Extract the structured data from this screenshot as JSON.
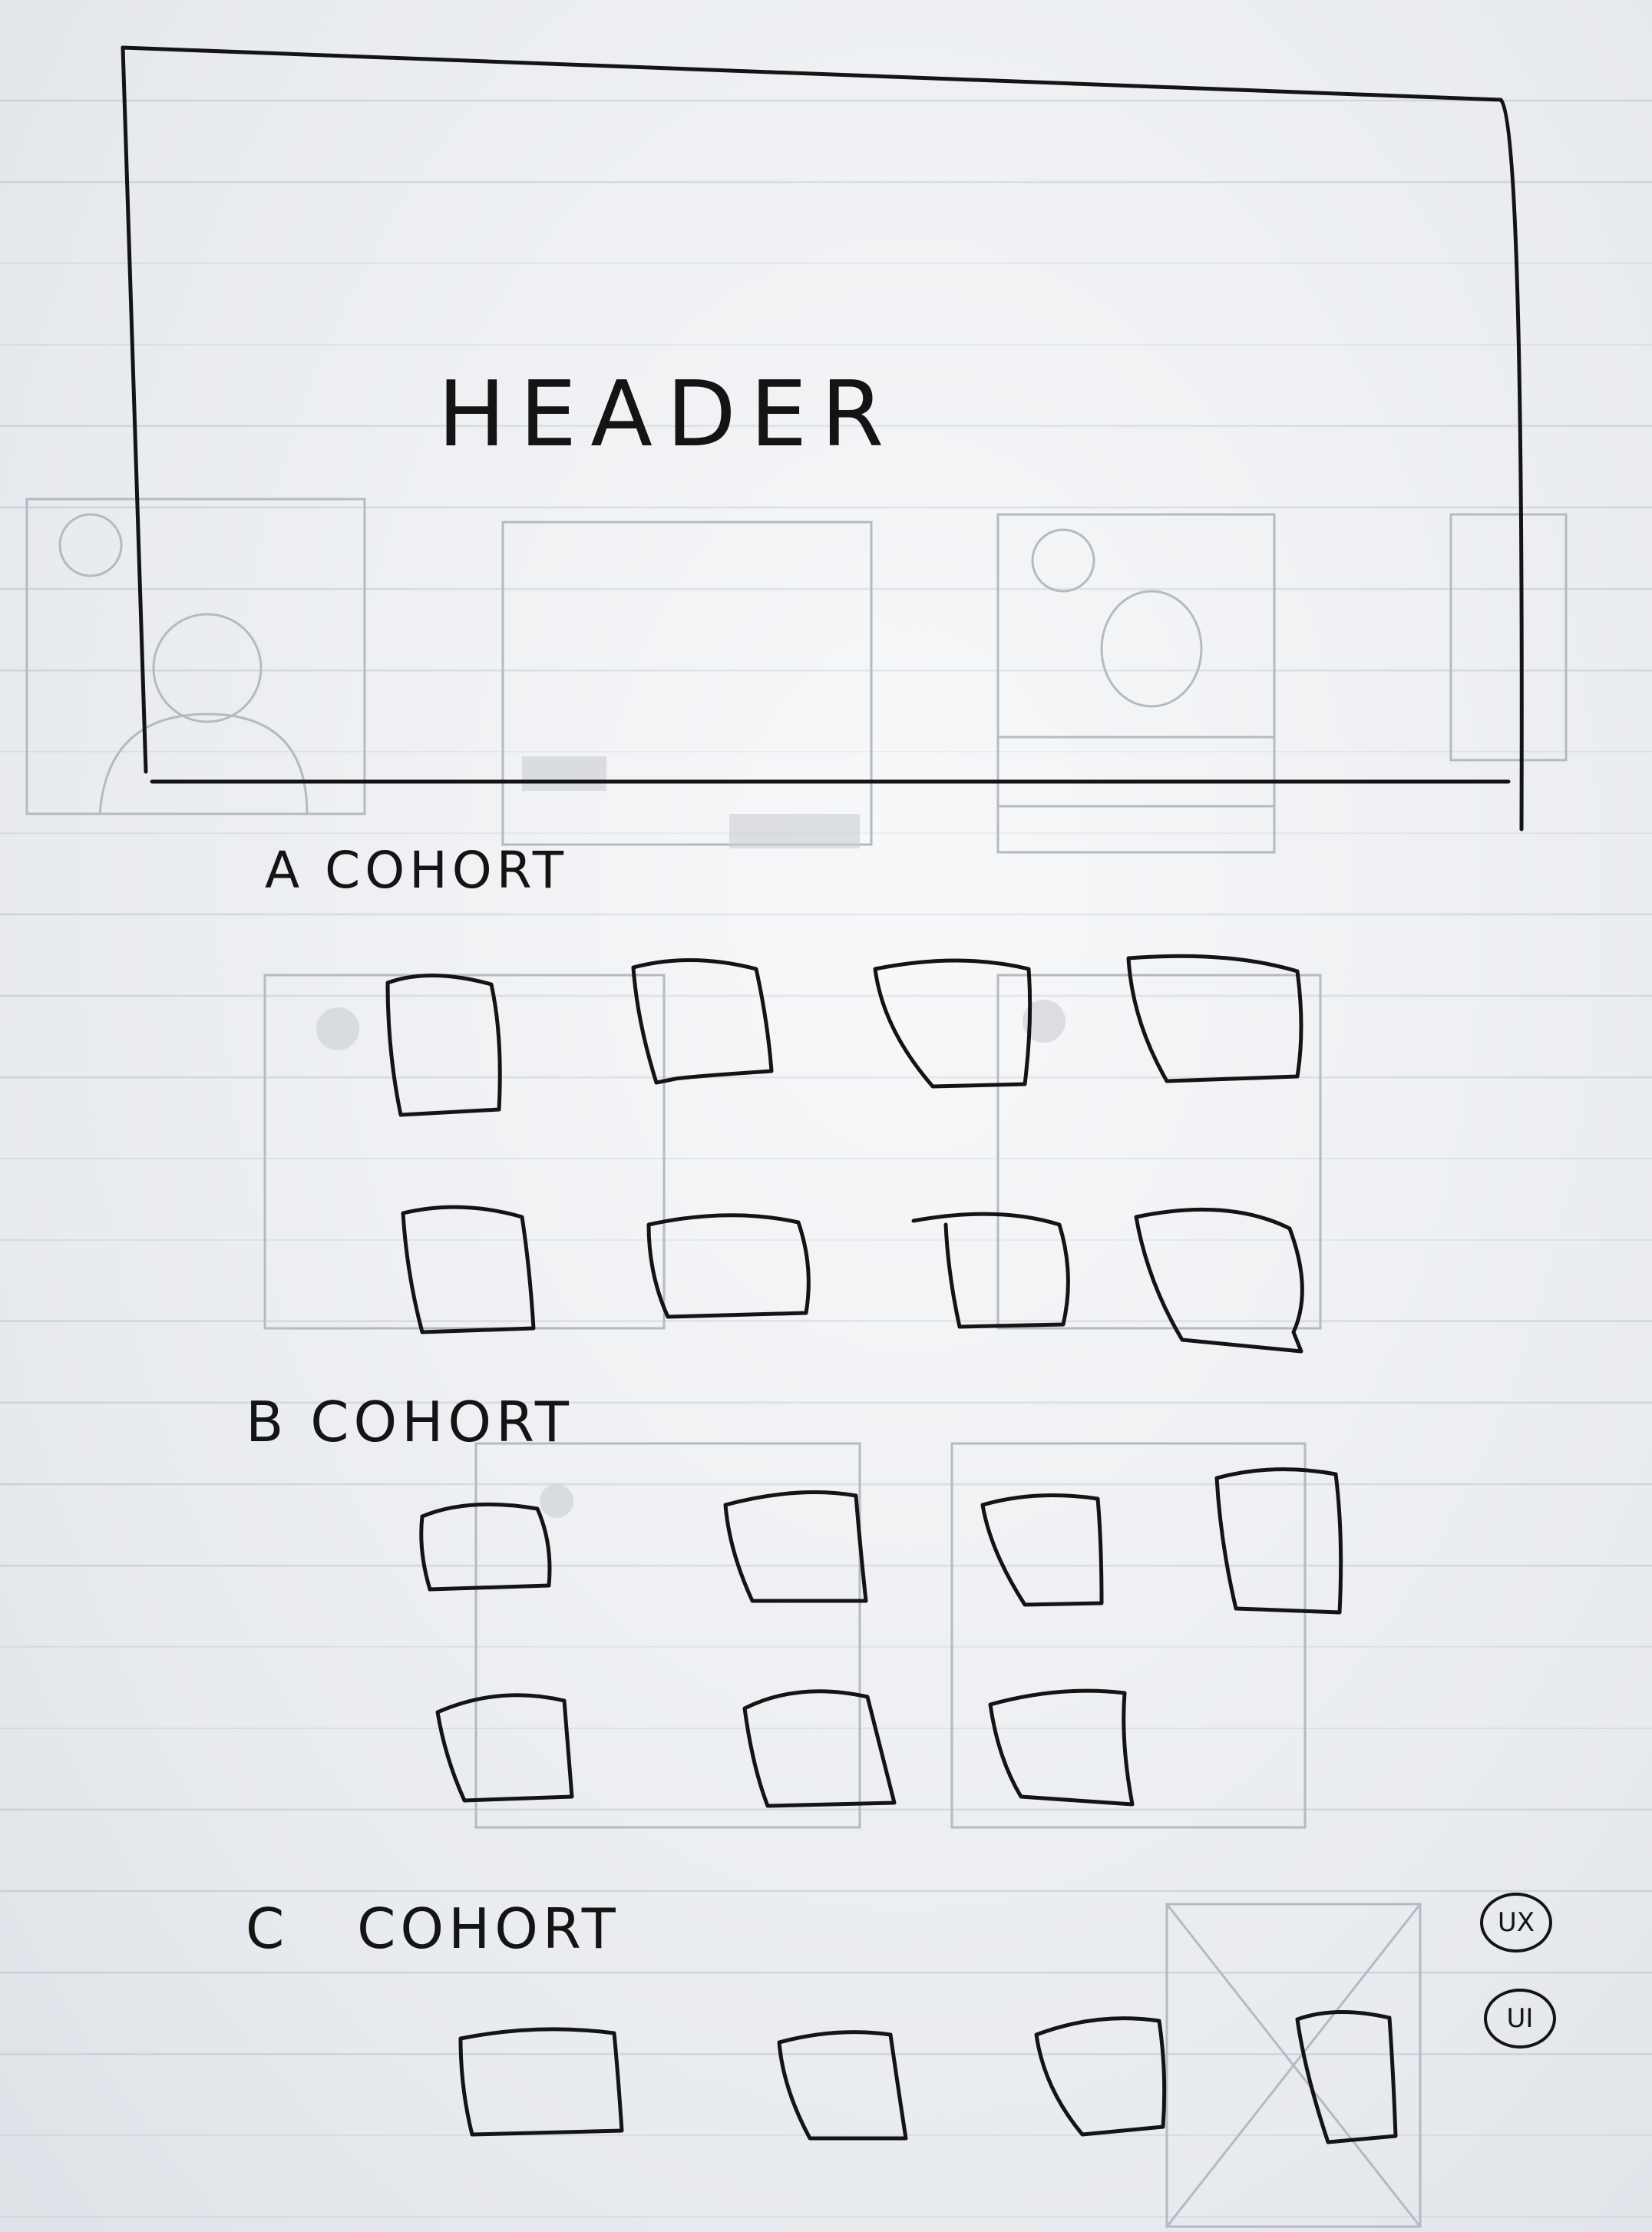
{
  "sketch": {
    "header_label": "HEADER",
    "sections": [
      {
        "label": "A COHORT",
        "card_count": 8
      },
      {
        "label": "B COHORT",
        "card_count": 7
      },
      {
        "label": "C COHORT",
        "card_count": 4
      }
    ],
    "badges": [
      "UX",
      "UI"
    ]
  }
}
